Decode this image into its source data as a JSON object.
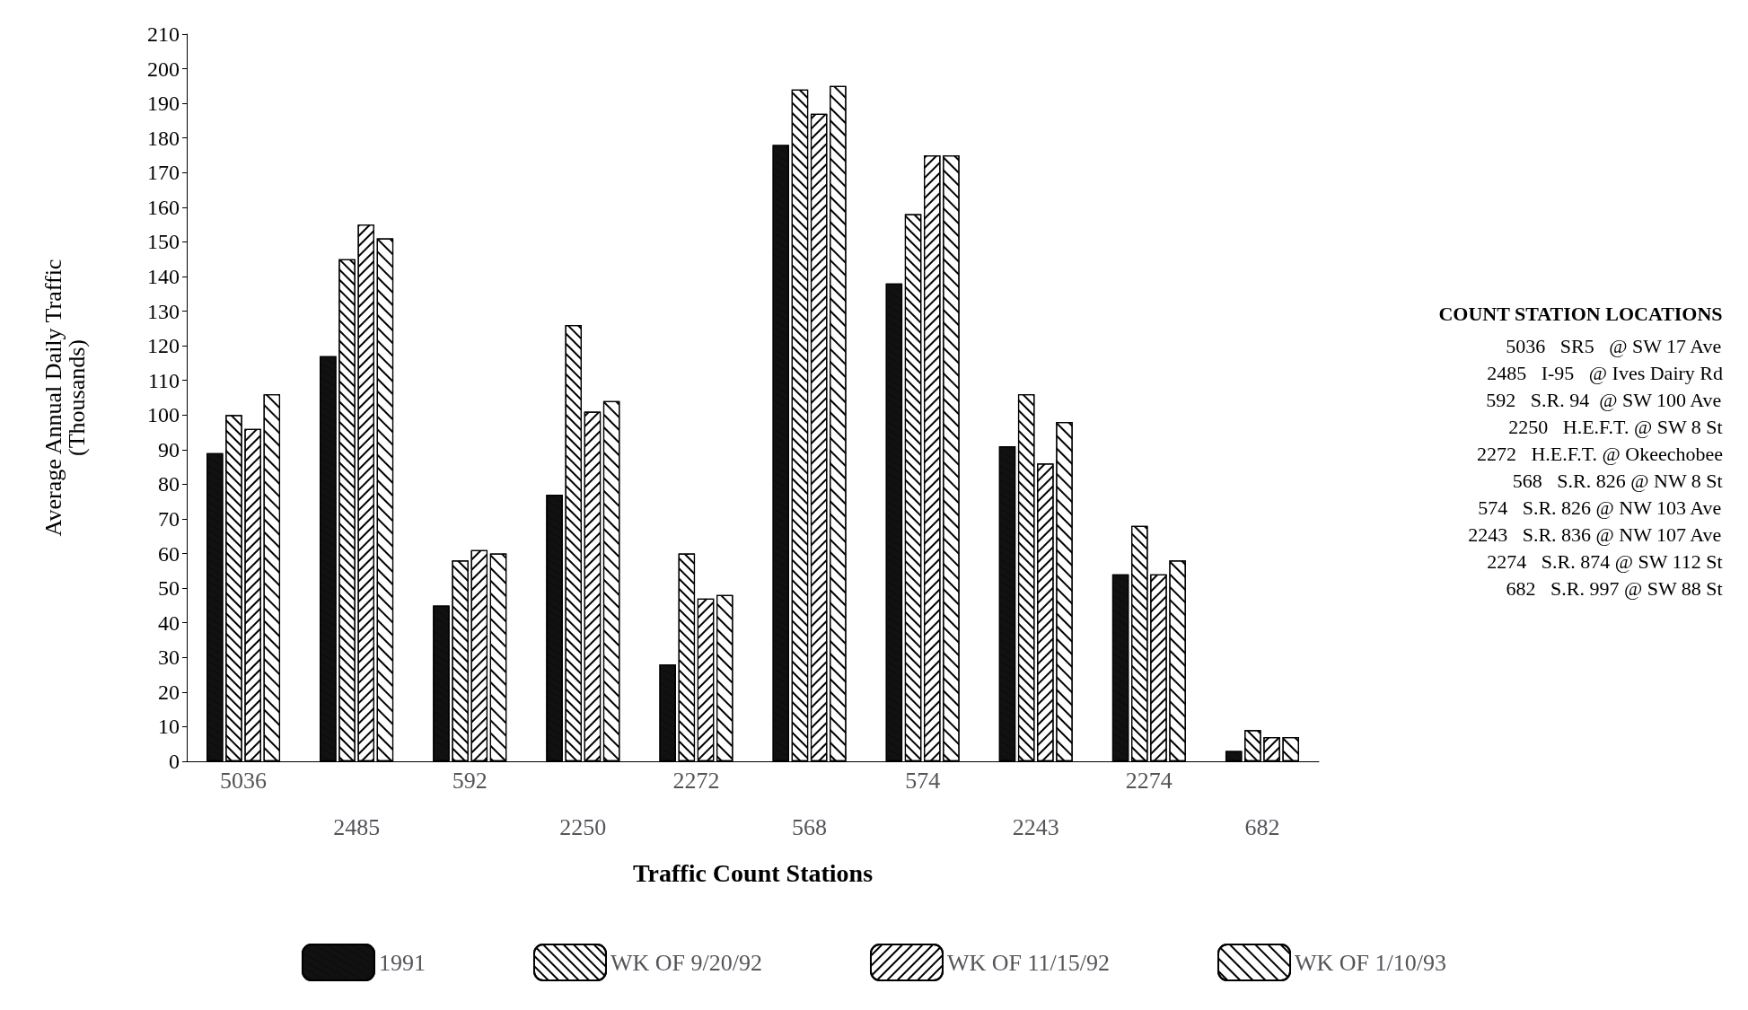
{
  "chart_data": {
    "type": "bar",
    "xlabel": "Traffic Count Stations",
    "ylabel": "Average Annual Daily Traffic\n(Thousands)",
    "categories": [
      "5036",
      "2485",
      "592",
      "2250",
      "2272",
      "568",
      "574",
      "2243",
      "2274",
      "682"
    ],
    "series": [
      {
        "name": "1991",
        "color": "#111111",
        "values": [
          89,
          117,
          45,
          77,
          28,
          178,
          138,
          91,
          54,
          3
        ]
      },
      {
        "name": "WK OF 9/20/92",
        "color": "#ffffff",
        "values": [
          100,
          145,
          58,
          126,
          60,
          194,
          158,
          106,
          68,
          9
        ]
      },
      {
        "name": "WK OF 11/15/92",
        "color": "#ffffff",
        "values": [
          96,
          155,
          61,
          101,
          47,
          187,
          175,
          86,
          54,
          7
        ]
      },
      {
        "name": "WK OF 1/10/93",
        "color": "#ffffff",
        "values": [
          106,
          151,
          60,
          104,
          48,
          195,
          175,
          98,
          58,
          7
        ]
      }
    ],
    "ylim": [
      0,
      210
    ],
    "yticks": [
      0,
      10,
      20,
      30,
      40,
      50,
      60,
      70,
      80,
      90,
      100,
      110,
      120,
      130,
      140,
      150,
      160,
      170,
      180,
      190,
      200,
      210
    ],
    "grid": false,
    "legend": "bottom",
    "annotations": [
      "COUNT STATION LOCATIONS",
      "5036   SR5   @ SW 17 Ave",
      "2485   I-95   @ Ives Dairy Rd",
      "592   S.R. 94  @ SW 100 Ave",
      "2250   H.E.F.T. @ SW 8 St",
      "2272   H.E.F.T. @ Okeechobee",
      "568   S.R. 826 @ NW 8 St",
      "574   S.R. 826 @ NW 103 Ave",
      "2243   S.R. 836 @ NW 107 Ave",
      "2274   S.R. 874 @ SW 112 St",
      "682   S.R. 997 @ SW 88 St"
    ]
  }
}
